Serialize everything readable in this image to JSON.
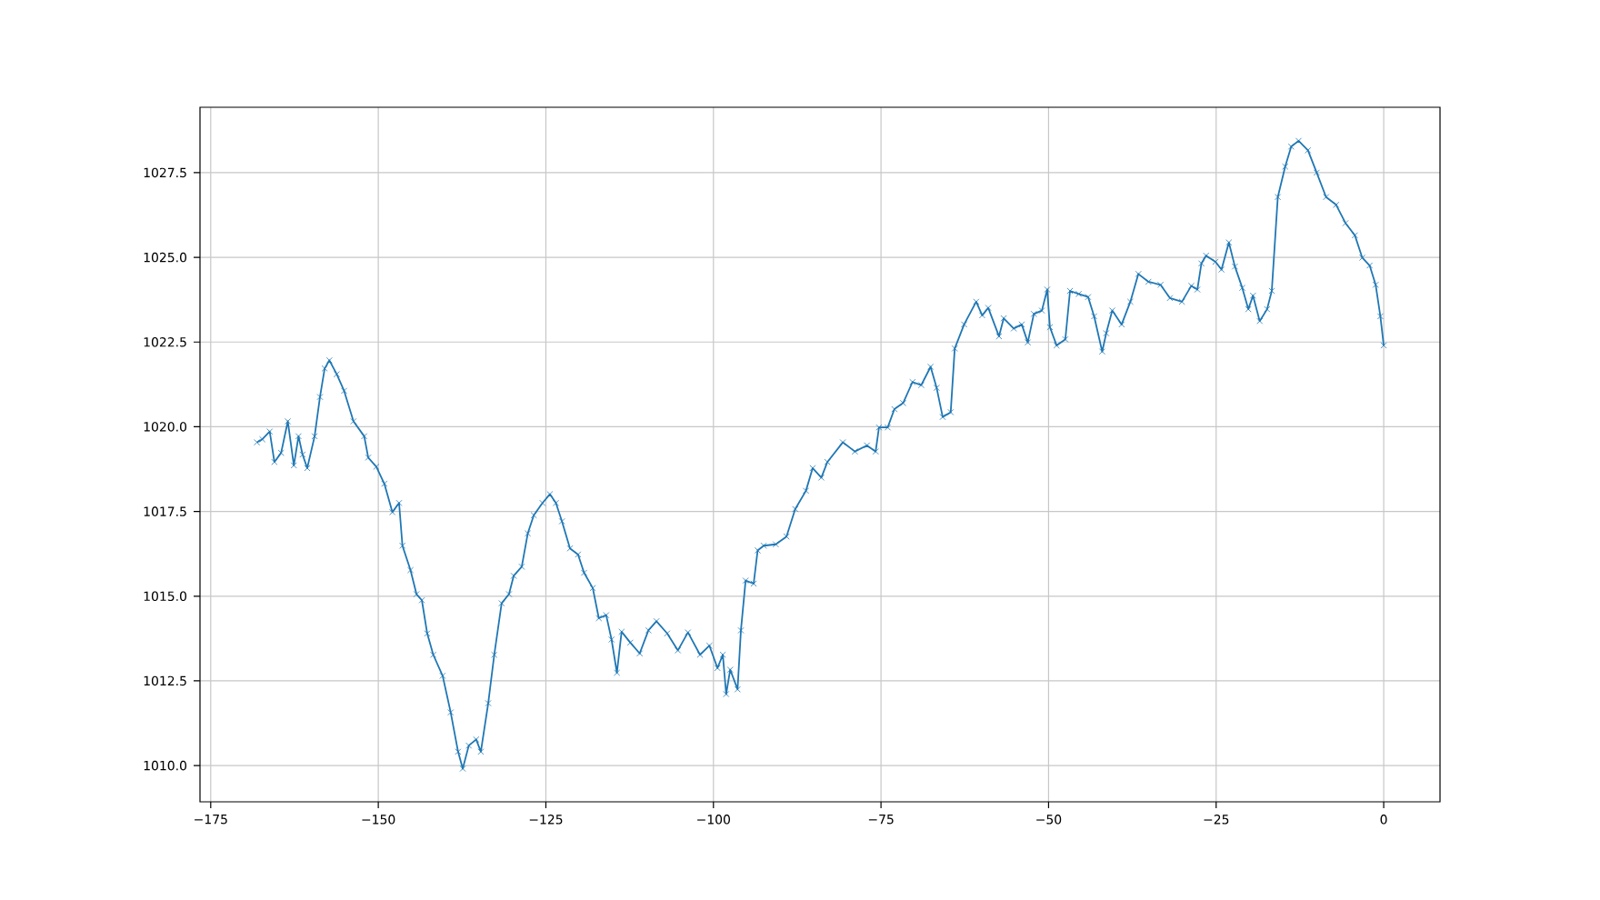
{
  "chart_data": {
    "type": "line",
    "color": "#1f77b4",
    "marker": "cross",
    "line_style": "solid",
    "grid": true,
    "xlim": [
      -176.6,
      8.4
    ],
    "ylim": [
      1008.93,
      1029.43
    ],
    "xticks": [
      {
        "value": -175,
        "label": "−175"
      },
      {
        "value": -150,
        "label": "−150"
      },
      {
        "value": -125,
        "label": "−125"
      },
      {
        "value": -100,
        "label": "−100"
      },
      {
        "value": -75,
        "label": "−75"
      },
      {
        "value": -50,
        "label": "−50"
      },
      {
        "value": -25,
        "label": "−25"
      },
      0
    ],
    "yticks": [
      {
        "value": 1010,
        "label": "1010.0"
      },
      {
        "value": 1012.5,
        "label": "1012.5"
      },
      {
        "value": 1015,
        "label": "1015.0"
      },
      {
        "value": 1017.5,
        "label": "1017.5"
      },
      {
        "value": 1020,
        "label": "1020.0"
      },
      {
        "value": 1022.5,
        "label": "1022.5"
      },
      {
        "value": 1025,
        "label": "1025.0"
      },
      {
        "value": 1027.5,
        "label": "1027.5"
      }
    ],
    "x": [
      -168.1,
      -167.3,
      -166.2,
      -165.5,
      -164.5,
      -163.5,
      -162.6,
      -161.9,
      -161.3,
      -160.6,
      -159.5,
      -158.7,
      -158.0,
      -157.3,
      -156.2,
      -155.1,
      -153.7,
      -152.1,
      -151.5,
      -150.3,
      -149.1,
      -147.9,
      -146.9,
      -146.4,
      -145.2,
      -144.3,
      -143.5,
      -142.7,
      -141.8,
      -140.4,
      -139.2,
      -138.1,
      -137.4,
      -136.5,
      -135.4,
      -134.7,
      -133.6,
      -132.7,
      -131.6,
      -130.5,
      -129.8,
      -128.6,
      -127.7,
      -126.8,
      -125.5,
      -124.4,
      -123.5,
      -122.6,
      -121.4,
      -120.2,
      -119.3,
      -118.0,
      -117.1,
      -116.0,
      -115.2,
      -114.4,
      -113.7,
      -112.4,
      -111.0,
      -109.7,
      -108.5,
      -106.9,
      -105.3,
      -103.8,
      -102.0,
      -100.6,
      -99.4,
      -98.6,
      -98.1,
      -97.5,
      -96.4,
      -95.9,
      -95.2,
      -94.0,
      -93.4,
      -92.5,
      -90.7,
      -89.1,
      -87.8,
      -86.2,
      -85.2,
      -83.9,
      -83.0,
      -80.7,
      -78.9,
      -77.1,
      -75.8,
      -75.3,
      -74.0,
      -73.0,
      -71.7,
      -70.3,
      -69.0,
      -67.6,
      -66.7,
      -65.8,
      -64.6,
      -64.0,
      -62.6,
      -60.8,
      -59.9,
      -59.0,
      -57.4,
      -56.7,
      -55.2,
      -54.0,
      -53.1,
      -52.2,
      -51.0,
      -50.2,
      -49.8,
      -48.8,
      -47.5,
      -46.8,
      -45.5,
      -44.1,
      -43.2,
      -42.0,
      -41.4,
      -40.5,
      -39.1,
      -37.8,
      -36.6,
      -35.1,
      -33.3,
      -31.9,
      -30.1,
      -28.7,
      -27.8,
      -27.2,
      -26.5,
      -25.1,
      -24.2,
      -23.1,
      -22.2,
      -21.1,
      -20.2,
      -19.5,
      -18.5,
      -17.4,
      -16.7,
      -15.8,
      -14.7,
      -13.8,
      -12.7,
      -11.3,
      -10.0,
      -8.6,
      -7.1,
      -5.7,
      -4.3,
      -3.2,
      -2.1,
      -1.2,
      -0.5,
      0
    ],
    "values": [
      1019.54,
      1019.63,
      1019.86,
      1018.96,
      1019.23,
      1020.16,
      1018.86,
      1019.72,
      1019.18,
      1018.78,
      1019.72,
      1020.88,
      1021.72,
      1021.96,
      1021.55,
      1021.06,
      1020.16,
      1019.72,
      1019.09,
      1018.82,
      1018.32,
      1017.48,
      1017.75,
      1016.49,
      1015.77,
      1015.06,
      1014.88,
      1013.9,
      1013.27,
      1012.65,
      1011.57,
      1010.41,
      1009.91,
      1010.59,
      1010.77,
      1010.41,
      1011.84,
      1013.27,
      1014.79,
      1015.06,
      1015.6,
      1015.87,
      1016.85,
      1017.39,
      1017.75,
      1018.01,
      1017.75,
      1017.21,
      1016.41,
      1016.23,
      1015.69,
      1015.24,
      1014.35,
      1014.44,
      1013.72,
      1012.74,
      1013.95,
      1013.63,
      1013.31,
      1013.99,
      1014.26,
      1013.9,
      1013.4,
      1013.93,
      1013.27,
      1013.54,
      1012.88,
      1013.27,
      1012.11,
      1012.83,
      1012.25,
      1013.99,
      1015.46,
      1015.37,
      1016.35,
      1016.49,
      1016.53,
      1016.76,
      1017.57,
      1018.11,
      1018.78,
      1018.5,
      1018.96,
      1019.54,
      1019.27,
      1019.45,
      1019.27,
      1019.98,
      1019.98,
      1020.52,
      1020.7,
      1021.32,
      1021.23,
      1021.77,
      1021.15,
      1020.29,
      1020.43,
      1022.31,
      1023.02,
      1023.69,
      1023.29,
      1023.51,
      1022.67,
      1023.2,
      1022.9,
      1023.02,
      1022.49,
      1023.33,
      1023.43,
      1024.05,
      1022.94,
      1022.4,
      1022.58,
      1024.01,
      1023.92,
      1023.83,
      1023.26,
      1022.22,
      1022.76,
      1023.43,
      1023.02,
      1023.69,
      1024.51,
      1024.28,
      1024.19,
      1023.8,
      1023.69,
      1024.16,
      1024.05,
      1024.82,
      1025.05,
      1024.87,
      1024.64,
      1025.44,
      1024.73,
      1024.1,
      1023.47,
      1023.87,
      1023.12,
      1023.47,
      1024.01,
      1026.78,
      1027.68,
      1028.27,
      1028.44,
      1028.16,
      1027.5,
      1026.78,
      1026.55,
      1026.01,
      1025.65,
      1024.99,
      1024.76,
      1024.19,
      1023.26,
      1022.4
    ]
  }
}
